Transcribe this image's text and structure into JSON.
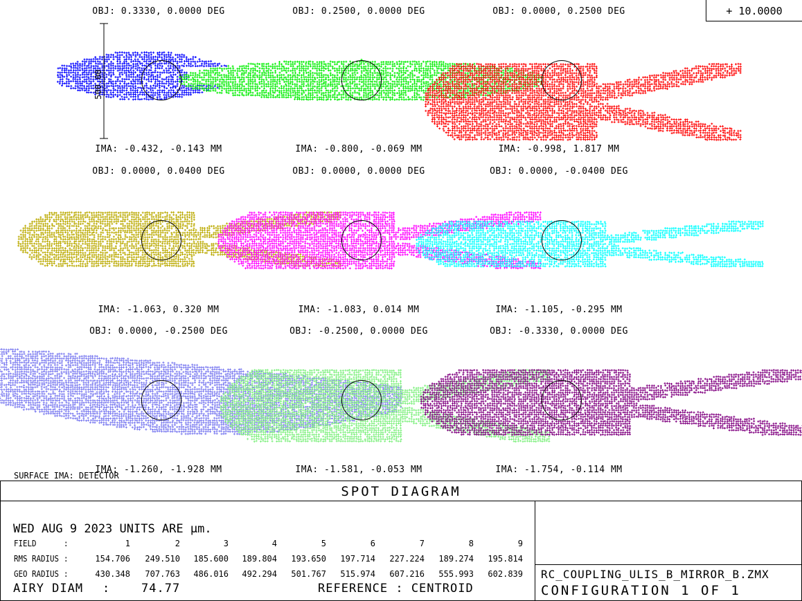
{
  "scale_box": "+ 10.0000",
  "scale_bar_label": "500.00",
  "surface_label": "SURFACE IMA: DETECTOR",
  "title": "SPOT DIAGRAM",
  "date_units": "WED AUG 9 2023  UNITS ARE µm.",
  "table": {
    "field_label": "FIELD",
    "rms_label": "RMS RADIUS",
    "geo_label": "GEO RADIUS",
    "colon": ":",
    "fields": [
      "1",
      "2",
      "3",
      "4",
      "5",
      "6",
      "7",
      "8",
      "9"
    ],
    "rms": [
      "154.706",
      "249.510",
      "185.600",
      "189.804",
      "193.650",
      "197.714",
      "227.224",
      "189.274",
      "195.814"
    ],
    "geo": [
      "430.348",
      "707.763",
      "486.016",
      "492.294",
      "501.767",
      "515.974",
      "607.216",
      "555.993",
      "602.839"
    ]
  },
  "airy_label": "AIRY DIAM",
  "airy_colon": ":",
  "airy_value": "74.77",
  "reference": "REFERENCE   : CENTROID",
  "filename": "RC_COUPLING_ULIS_B_MIRROR_B.ZMX",
  "configuration": "CONFIGURATION 1 OF 1",
  "chart_data": {
    "type": "scatter",
    "title": "SPOT DIAGRAM",
    "units": "µm",
    "scale_bar": 500.0,
    "airy_diameter": 74.77,
    "spots": [
      {
        "field": 1,
        "obj": "OBJ: 0.3330, 0.0000 DEG",
        "ima": "IMA: -0.432, -0.143 MM",
        "color": "#0000ff",
        "shape": "fan-left",
        "extent_um": [
          -450,
          450,
          -90,
          130
        ]
      },
      {
        "field": 2,
        "obj": "OBJ: 0.2500, 0.0000 DEG",
        "ima": "IMA: -0.800, -0.069 MM",
        "color": "#00ee00",
        "shape": "ellipse",
        "extent_um": [
          -800,
          800,
          -90,
          90
        ]
      },
      {
        "field": 3,
        "obj": "OBJ: 0.0000, 0.2500 DEG",
        "ima": "IMA: -0.998, 1.817 MM",
        "color": "#ff0000",
        "shape": "fork",
        "extent_um": [
          -600,
          780,
          -260,
          70
        ]
      },
      {
        "field": 4,
        "obj": "OBJ: 0.0000, 0.0400 DEG",
        "ima": "IMA: -1.063, 0.320 MM",
        "color": "#bbaa00",
        "shape": "fork",
        "extent_um": [
          -630,
          780,
          -120,
          120
        ]
      },
      {
        "field": 5,
        "obj": "OBJ: 0.0000, 0.0000 DEG",
        "ima": "IMA: -1.083, 0.014 MM",
        "color": "#ff00ff",
        "shape": "fork",
        "extent_um": [
          -630,
          780,
          -130,
          120
        ]
      },
      {
        "field": 6,
        "obj": "OBJ: 0.0000, -0.0400 DEG",
        "ima": "IMA: -1.105, -0.295 MM",
        "color": "#00ffff",
        "shape": "fork",
        "extent_um": [
          -640,
          880,
          -120,
          80
        ]
      },
      {
        "field": 7,
        "obj": "OBJ: 0.0000, -0.2500 DEG",
        "ima": "IMA: -1.260, -1.928 MM",
        "color": "#7b7bf0",
        "shape": "wedge",
        "extent_um": [
          -780,
          1050,
          -150,
          230
        ]
      },
      {
        "field": 8,
        "obj": "OBJ: -0.2500, 0.0000 DEG",
        "ima": "IMA: -1.581, -0.053 MM",
        "color": "#80f080",
        "shape": "fork",
        "extent_um": [
          -620,
          820,
          -180,
          130
        ]
      },
      {
        "field": 9,
        "obj": "OBJ: -0.3330, 0.0000 DEG",
        "ima": "IMA: -1.754, -0.114 MM",
        "color": "#800080",
        "shape": "fork",
        "extent_um": [
          -620,
          1050,
          -150,
          130
        ]
      }
    ]
  }
}
